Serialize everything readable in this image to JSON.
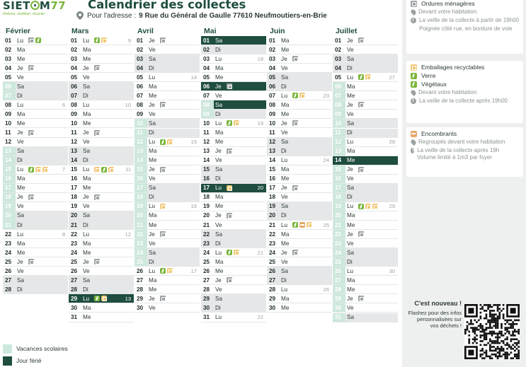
{
  "header": {
    "logo_name": "SIET",
    "logo_name_end": "M",
    "logo_num": "77",
    "logo_tagline": "Réduire, réutiliser, recycler",
    "title": "Calendrier des collectes",
    "address_label": "Pour l'adresse :",
    "address_value": "9 Rue du Général de Gaulle 77610 Neufmoutiers-en-Brie"
  },
  "months": [
    {
      "name": "Février",
      "days": [
        [
          "01",
          "Lu",
          "om,verre",
          ""
        ],
        [
          "02",
          "Ma",
          "",
          ""
        ],
        [
          "03",
          "Me",
          "",
          ""
        ],
        [
          "04",
          "Je",
          "om",
          ""
        ],
        [
          "05",
          "Ve",
          "",
          ""
        ],
        [
          "06",
          "Sa",
          "",
          ""
        ],
        [
          "07",
          "Di",
          "",
          ""
        ],
        [
          "08",
          "Lu",
          "",
          "6"
        ],
        [
          "09",
          "Ma",
          "",
          ""
        ],
        [
          "10",
          "Me",
          "",
          ""
        ],
        [
          "11",
          "Je",
          "om",
          ""
        ],
        [
          "12",
          "Ve",
          "",
          ""
        ],
        [
          "13",
          "Sa",
          "",
          ""
        ],
        [
          "14",
          "Di",
          "",
          ""
        ],
        [
          "15",
          "Lu",
          "verre,emb,emb",
          "7"
        ],
        [
          "16",
          "Ma",
          "",
          ""
        ],
        [
          "17",
          "Me",
          "",
          ""
        ],
        [
          "18",
          "Je",
          "om",
          ""
        ],
        [
          "19",
          "Ve",
          "",
          ""
        ],
        [
          "20",
          "Sa",
          "",
          ""
        ],
        [
          "21",
          "Di",
          "",
          ""
        ],
        [
          "22",
          "Lu",
          "",
          "8"
        ],
        [
          "23",
          "Ma",
          "",
          ""
        ],
        [
          "24",
          "Me",
          "",
          ""
        ],
        [
          "25",
          "Je",
          "om",
          ""
        ],
        [
          "26",
          "Ve",
          "",
          ""
        ],
        [
          "27",
          "Sa",
          "",
          ""
        ],
        [
          "28",
          "Di",
          "",
          ""
        ]
      ]
    },
    {
      "name": "Mars",
      "days": [
        [
          "01",
          "Lu",
          "verre,emb",
          "9"
        ],
        [
          "02",
          "Ma",
          "",
          ""
        ],
        [
          "03",
          "Me",
          "",
          ""
        ],
        [
          "04",
          "Je",
          "om",
          ""
        ],
        [
          "05",
          "Ve",
          "",
          ""
        ],
        [
          "06",
          "Sa",
          "",
          ""
        ],
        [
          "07",
          "Di",
          "",
          ""
        ],
        [
          "08",
          "Lu",
          "",
          "10"
        ],
        [
          "09",
          "Ma",
          "",
          ""
        ],
        [
          "10",
          "Me",
          "",
          ""
        ],
        [
          "11",
          "Je",
          "om",
          ""
        ],
        [
          "12",
          "Ve",
          "",
          ""
        ],
        [
          "13",
          "Sa",
          "",
          ""
        ],
        [
          "14",
          "Di",
          "",
          ""
        ],
        [
          "15",
          "Lu",
          "emb,verre,emb",
          "11"
        ],
        [
          "16",
          "Ma",
          "",
          ""
        ],
        [
          "17",
          "Me",
          "",
          ""
        ],
        [
          "18",
          "Je",
          "om",
          ""
        ],
        [
          "19",
          "Ve",
          "",
          ""
        ],
        [
          "20",
          "Sa",
          "",
          ""
        ],
        [
          "21",
          "Di",
          "",
          ""
        ],
        [
          "22",
          "Lu",
          "",
          "12"
        ],
        [
          "23",
          "Ma",
          "",
          ""
        ],
        [
          "24",
          "Me",
          "",
          ""
        ],
        [
          "25",
          "Je",
          "om",
          ""
        ],
        [
          "26",
          "Ve",
          "",
          ""
        ],
        [
          "27",
          "Sa",
          "",
          ""
        ],
        [
          "28",
          "Di",
          "",
          ""
        ],
        [
          "29",
          "Lu",
          "verre,emb",
          "13"
        ],
        [
          "30",
          "Ma",
          "",
          ""
        ],
        [
          "31",
          "Me",
          "",
          ""
        ]
      ]
    },
    {
      "name": "Avril",
      "days": [
        [
          "01",
          "Je",
          "om",
          ""
        ],
        [
          "02",
          "Ve",
          "",
          ""
        ],
        [
          "03",
          "Sa",
          "",
          ""
        ],
        [
          "04",
          "Di",
          "",
          ""
        ],
        [
          "05",
          "Lu",
          "",
          "14"
        ],
        [
          "06",
          "Ma",
          "",
          ""
        ],
        [
          "07",
          "Me",
          "",
          ""
        ],
        [
          "08",
          "Je",
          "om",
          ""
        ],
        [
          "09",
          "Ve",
          "",
          ""
        ],
        [
          "10",
          "Sa",
          "",
          ""
        ],
        [
          "11",
          "Di",
          "",
          ""
        ],
        [
          "12",
          "Lu",
          "verre,emb",
          "15"
        ],
        [
          "13",
          "Ma",
          "",
          ""
        ],
        [
          "14",
          "Me",
          "",
          ""
        ],
        [
          "15",
          "Je",
          "om",
          ""
        ],
        [
          "16",
          "Ve",
          "",
          ""
        ],
        [
          "17",
          "Sa",
          "",
          ""
        ],
        [
          "18",
          "Di",
          "",
          ""
        ],
        [
          "19",
          "Lu",
          "emb",
          "16"
        ],
        [
          "20",
          "Ma",
          "",
          ""
        ],
        [
          "21",
          "Me",
          "",
          ""
        ],
        [
          "22",
          "Je",
          "om",
          ""
        ],
        [
          "23",
          "Ve",
          "",
          ""
        ],
        [
          "24",
          "Sa",
          "",
          ""
        ],
        [
          "25",
          "Di",
          "",
          ""
        ],
        [
          "26",
          "Lu",
          "verre,emb",
          "17"
        ],
        [
          "27",
          "Ma",
          "",
          ""
        ],
        [
          "28",
          "Me",
          "",
          ""
        ],
        [
          "29",
          "Je",
          "om",
          ""
        ],
        [
          "30",
          "Ve",
          "",
          ""
        ]
      ]
    },
    {
      "name": "Mai",
      "days": [
        [
          "01",
          "Sa",
          "",
          ""
        ],
        [
          "02",
          "Di",
          "",
          ""
        ],
        [
          "03",
          "Lu",
          "",
          "18"
        ],
        [
          "04",
          "Ma",
          "",
          ""
        ],
        [
          "05",
          "Me",
          "",
          ""
        ],
        [
          "06",
          "Je",
          "om",
          ""
        ],
        [
          "07",
          "Ve",
          "",
          ""
        ],
        [
          "08",
          "Sa",
          "",
          ""
        ],
        [
          "09",
          "Di",
          "",
          ""
        ],
        [
          "10",
          "Lu",
          "verre,emb",
          "19"
        ],
        [
          "11",
          "Ma",
          "",
          ""
        ],
        [
          "12",
          "Me",
          "",
          ""
        ],
        [
          "13",
          "Je",
          "om",
          ""
        ],
        [
          "14",
          "Ve",
          "",
          ""
        ],
        [
          "15",
          "Sa",
          "",
          ""
        ],
        [
          "16",
          "Di",
          "",
          ""
        ],
        [
          "17",
          "Lu",
          "emb",
          "20"
        ],
        [
          "18",
          "Ma",
          "",
          ""
        ],
        [
          "19",
          "Me",
          "",
          ""
        ],
        [
          "20",
          "Je",
          "om",
          ""
        ],
        [
          "21",
          "Ve",
          "",
          ""
        ],
        [
          "22",
          "Sa",
          "",
          ""
        ],
        [
          "23",
          "Di",
          "",
          ""
        ],
        [
          "24",
          "Lu",
          "verre,emb",
          "21"
        ],
        [
          "25",
          "Ma",
          "",
          ""
        ],
        [
          "26",
          "Me",
          "",
          ""
        ],
        [
          "27",
          "Je",
          "om",
          ""
        ],
        [
          "28",
          "Ve",
          "",
          ""
        ],
        [
          "29",
          "Sa",
          "",
          ""
        ],
        [
          "30",
          "Di",
          "",
          ""
        ],
        [
          "31",
          "Lu",
          "",
          "22"
        ]
      ]
    },
    {
      "name": "Juin",
      "days": [
        [
          "01",
          "Ma",
          "",
          ""
        ],
        [
          "02",
          "Me",
          "",
          ""
        ],
        [
          "03",
          "Je",
          "om",
          ""
        ],
        [
          "04",
          "Ve",
          "",
          ""
        ],
        [
          "05",
          "Sa",
          "",
          ""
        ],
        [
          "06",
          "Di",
          "",
          ""
        ],
        [
          "07",
          "Lu",
          "verre,emb",
          "23"
        ],
        [
          "08",
          "Ma",
          "",
          ""
        ],
        [
          "09",
          "Me",
          "",
          ""
        ],
        [
          "10",
          "Je",
          "om",
          ""
        ],
        [
          "11",
          "Ve",
          "",
          ""
        ],
        [
          "12",
          "Sa",
          "",
          ""
        ],
        [
          "13",
          "Di",
          "",
          ""
        ],
        [
          "14",
          "Lu",
          "",
          "24"
        ],
        [
          "15",
          "Ma",
          "",
          ""
        ],
        [
          "16",
          "Me",
          "",
          ""
        ],
        [
          "17",
          "Je",
          "om",
          ""
        ],
        [
          "18",
          "Ve",
          "",
          ""
        ],
        [
          "19",
          "Sa",
          "",
          ""
        ],
        [
          "20",
          "Di",
          "",
          ""
        ],
        [
          "21",
          "Lu",
          "verre,enc,emb",
          "25"
        ],
        [
          "22",
          "Ma",
          "",
          ""
        ],
        [
          "23",
          "Me",
          "",
          ""
        ],
        [
          "24",
          "Je",
          "om",
          ""
        ],
        [
          "25",
          "Ve",
          "",
          ""
        ],
        [
          "26",
          "Sa",
          "",
          ""
        ],
        [
          "27",
          "Di",
          "",
          ""
        ],
        [
          "28",
          "Lu",
          "",
          "26"
        ],
        [
          "29",
          "Ma",
          "",
          ""
        ],
        [
          "30",
          "Me",
          "",
          ""
        ]
      ]
    },
    {
      "name": "Juillet",
      "days": [
        [
          "01",
          "Je",
          "om",
          ""
        ],
        [
          "02",
          "Ve",
          "",
          ""
        ],
        [
          "03",
          "Sa",
          "",
          ""
        ],
        [
          "04",
          "Di",
          "",
          ""
        ],
        [
          "05",
          "Lu",
          "verre,emb",
          "27"
        ],
        [
          "06",
          "Ma",
          "",
          ""
        ],
        [
          "07",
          "Me",
          "",
          ""
        ],
        [
          "08",
          "Je",
          "om",
          ""
        ],
        [
          "09",
          "Ve",
          "",
          ""
        ],
        [
          "10",
          "Sa",
          "",
          ""
        ],
        [
          "11",
          "Di",
          "",
          ""
        ],
        [
          "12",
          "Lu",
          "",
          "28"
        ],
        [
          "13",
          "Ma",
          "",
          ""
        ],
        [
          "14",
          "Me",
          "",
          ""
        ],
        [
          "15",
          "Je",
          "om",
          ""
        ],
        [
          "16",
          "Ve",
          "",
          ""
        ],
        [
          "17",
          "Sa",
          "",
          ""
        ],
        [
          "18",
          "Di",
          "",
          ""
        ],
        [
          "19",
          "Lu",
          "verre,emb,emb",
          "29"
        ],
        [
          "20",
          "Ma",
          "",
          ""
        ],
        [
          "21",
          "Me",
          "",
          ""
        ],
        [
          "22",
          "Je",
          "om",
          ""
        ],
        [
          "23",
          "Ve",
          "",
          ""
        ],
        [
          "24",
          "Sa",
          "",
          ""
        ],
        [
          "25",
          "Di",
          "",
          ""
        ],
        [
          "26",
          "Lu",
          "",
          "30"
        ],
        [
          "27",
          "Ma",
          "",
          ""
        ],
        [
          "28",
          "Me",
          "",
          ""
        ],
        [
          "29",
          "Je",
          "om",
          ""
        ],
        [
          "30",
          "Ve",
          "",
          ""
        ],
        [
          "31",
          "Sa",
          "",
          ""
        ]
      ]
    }
  ],
  "vacances": {
    "Février": [
      "06",
      "07",
      "13",
      "14",
      "15",
      "16",
      "17",
      "18",
      "19",
      "20",
      "21"
    ],
    "Mars": [],
    "Avril": [
      "10",
      "11",
      "12",
      "13",
      "14",
      "15",
      "16",
      "17",
      "18",
      "19",
      "20",
      "21",
      "22",
      "23",
      "24",
      "25"
    ],
    "Mai": [
      "08",
      "09"
    ],
    "Juin": [],
    "Juillet": [
      "06",
      "07",
      "08",
      "09",
      "10",
      "11",
      "12",
      "13",
      "15",
      "16",
      "17",
      "18",
      "19",
      "20",
      "21",
      "22",
      "23",
      "24",
      "25",
      "26",
      "27",
      "28",
      "29",
      "30",
      "31"
    ]
  },
  "feries": {
    "Mars": [
      "29"
    ],
    "Mai": [
      "01",
      "06",
      "08",
      "17"
    ],
    "Juillet": [
      "14"
    ]
  },
  "sidebar": {
    "om_title": "Ordures ménagères",
    "om_line1": "Devant votre habitation",
    "om_line2": "La veille de la collecte à partir de 19h00",
    "om_line3": "Poignée côté rue, en bordure de voie",
    "emb_title": "Emballages recyclables",
    "verre_title": "Verre",
    "veg_title": "Végétaux",
    "emb_line1": "Devant votre habitation",
    "emb_line2": "La veille de la collecte après 19h00",
    "enc_title": "Encombrants",
    "enc_line1": "Regroupés devant votre habitation",
    "enc_line2": "La veille de la collecte après 19h Volume limité à 1m3 par foyer"
  },
  "legend": {
    "vacances": "Vacances scolaires",
    "ferie": "Jour férié"
  },
  "news": {
    "title": "C'est nouveau !",
    "text": "Flashez pour des infos personnalisées sur vos déchets !"
  },
  "colors": {
    "brand_dark": "#1f4d40",
    "brand_green": "#7ab63b",
    "vacances": "#cde8dc",
    "weekend": "#e6e7e9"
  }
}
